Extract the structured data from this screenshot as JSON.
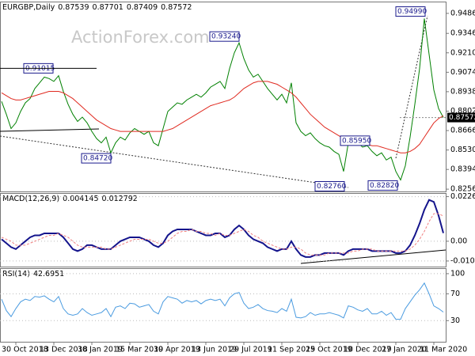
{
  "chart_data": [
    {
      "type": "line",
      "title": "EURGBP,Daily",
      "ohlc": [
        0.87539,
        0.87701,
        0.87409,
        0.87572
      ],
      "watermark": "ActionForex.com",
      "ylim": [
        0.824,
        0.9563
      ],
      "yticks": [
        {
          "value": 0.9486,
          "label": "0.94860"
        },
        {
          "value": 0.9346,
          "label": "0.93460"
        },
        {
          "value": 0.921,
          "label": "0.92100"
        },
        {
          "value": 0.9074,
          "label": "0.90740"
        },
        {
          "value": 0.8938,
          "label": "0.89380"
        },
        {
          "value": 0.8802,
          "label": "0.88020"
        },
        {
          "value": 0.8666,
          "label": "0.86660"
        },
        {
          "value": 0.853,
          "label": "0.85300"
        },
        {
          "value": 0.8394,
          "label": "0.83940"
        },
        {
          "value": 0.8256,
          "label": "0.82560"
        }
      ],
      "annotations": [
        {
          "value": 0.91015,
          "label": "0.91015"
        },
        {
          "value": 0.8472,
          "label": "0.84720"
        },
        {
          "value": 0.9324,
          "label": "0.93240"
        },
        {
          "value": 0.8276,
          "label": "0.82760"
        },
        {
          "value": 0.8595,
          "label": "0.85950"
        },
        {
          "value": 0.8282,
          "label": "0.82820"
        },
        {
          "value": 0.9499,
          "label": "0.94990"
        }
      ],
      "series": [
        {
          "color": "#008000",
          "values": [
            0.887,
            0.878,
            0.868,
            0.872,
            0.88,
            0.886,
            0.889,
            0.896,
            0.9,
            0.904,
            0.903,
            0.901,
            0.905,
            0.894,
            0.885,
            0.878,
            0.873,
            0.876,
            0.872,
            0.866,
            0.861,
            0.858,
            0.862,
            0.851,
            0.858,
            0.862,
            0.86,
            0.865,
            0.868,
            0.866,
            0.864,
            0.866,
            0.858,
            0.856,
            0.868,
            0.88,
            0.883,
            0.886,
            0.885,
            0.888,
            0.89,
            0.892,
            0.89,
            0.893,
            0.897,
            0.899,
            0.901,
            0.896,
            0.91,
            0.921,
            0.928,
            0.917,
            0.909,
            0.904,
            0.906,
            0.901,
            0.896,
            0.892,
            0.888,
            0.892,
            0.886,
            0.9,
            0.872,
            0.866,
            0.863,
            0.865,
            0.861,
            0.858,
            0.856,
            0.855,
            0.852,
            0.85,
            0.838,
            0.858,
            0.86,
            0.858,
            0.855,
            0.856,
            0.852,
            0.849,
            0.851,
            0.846,
            0.848,
            0.838,
            0.832,
            0.842,
            0.862,
            0.885,
            0.91,
            0.945,
            0.92,
            0.895,
            0.882,
            0.8757
          ]
        },
        {
          "color": "#e02a20",
          "values": [
            0.893,
            0.891,
            0.889,
            0.888,
            0.888,
            0.889,
            0.89,
            0.891,
            0.892,
            0.893,
            0.894,
            0.894,
            0.894,
            0.893,
            0.891,
            0.889,
            0.886,
            0.883,
            0.88,
            0.877,
            0.874,
            0.872,
            0.87,
            0.868,
            0.867,
            0.866,
            0.866,
            0.866,
            0.866,
            0.866,
            0.866,
            0.866,
            0.866,
            0.866,
            0.866,
            0.867,
            0.868,
            0.87,
            0.872,
            0.874,
            0.876,
            0.878,
            0.88,
            0.882,
            0.884,
            0.885,
            0.886,
            0.887,
            0.888,
            0.89,
            0.893,
            0.896,
            0.898,
            0.9,
            0.901,
            0.901,
            0.901,
            0.9,
            0.899,
            0.897,
            0.895,
            0.893,
            0.89,
            0.886,
            0.882,
            0.878,
            0.875,
            0.872,
            0.869,
            0.867,
            0.865,
            0.863,
            0.861,
            0.86,
            0.859,
            0.858,
            0.857,
            0.857,
            0.856,
            0.856,
            0.855,
            0.854,
            0.853,
            0.852,
            0.851,
            0.851,
            0.852,
            0.854,
            0.857,
            0.862,
            0.867,
            0.872,
            0.875,
            0.877
          ]
        }
      ]
    },
    {
      "type": "line",
      "title": "MACD(12,26,9)",
      "ylim": [
        -0.0129,
        0.0241
      ],
      "yticks": [
        0.022662,
        {
          "value": 0,
          "label": "0.00"
        },
        -0.010052
      ],
      "series": [
        {
          "color": "#14148c",
          "values": [
            0.001,
            -0.001,
            -0.003,
            -0.004,
            -0.002,
            0.0,
            0.002,
            0.003,
            0.003,
            0.004,
            0.004,
            0.004,
            0.004,
            0.002,
            -0.001,
            -0.004,
            -0.005,
            -0.004,
            -0.002,
            -0.002,
            -0.003,
            -0.004,
            -0.004,
            -0.004,
            -0.002,
            0.0,
            0.001,
            0.002,
            0.002,
            0.002,
            0.001,
            0.0,
            -0.002,
            -0.003,
            -0.001,
            0.003,
            0.005,
            0.006,
            0.006,
            0.006,
            0.006,
            0.005,
            0.004,
            0.003,
            0.003,
            0.004,
            0.004,
            0.002,
            0.003,
            0.006,
            0.008,
            0.006,
            0.003,
            0.001,
            0.0,
            -0.001,
            -0.003,
            -0.004,
            -0.005,
            -0.004,
            -0.004,
            0.0,
            -0.004,
            -0.007,
            -0.008,
            -0.008,
            -0.007,
            -0.007,
            -0.006,
            -0.006,
            -0.006,
            -0.006,
            -0.007,
            -0.005,
            -0.004,
            -0.004,
            -0.004,
            -0.004,
            -0.005,
            -0.005,
            -0.005,
            -0.005,
            -0.005,
            -0.006,
            -0.006,
            -0.005,
            -0.002,
            0.003,
            0.009,
            0.016,
            0.021,
            0.02,
            0.013,
            0.004145
          ]
        },
        {
          "color": "#f08080",
          "values": [
            0.002,
            0.001,
            0.0,
            -0.002,
            -0.002,
            -0.002,
            -0.001,
            0.0,
            0.001,
            0.002,
            0.003,
            0.003,
            0.004,
            0.003,
            0.002,
            0.0,
            -0.002,
            -0.003,
            -0.003,
            -0.003,
            -0.003,
            -0.003,
            -0.004,
            -0.004,
            -0.003,
            -0.002,
            -0.001,
            0.0,
            0.001,
            0.001,
            0.001,
            0.001,
            0.0,
            -0.001,
            -0.001,
            0.0,
            0.002,
            0.004,
            0.005,
            0.005,
            0.006,
            0.005,
            0.005,
            0.004,
            0.004,
            0.003,
            0.004,
            0.003,
            0.003,
            0.004,
            0.005,
            0.006,
            0.005,
            0.003,
            0.002,
            0.0,
            -0.001,
            -0.002,
            -0.003,
            -0.004,
            -0.004,
            -0.003,
            -0.003,
            -0.004,
            -0.006,
            -0.007,
            -0.007,
            -0.007,
            -0.007,
            -0.006,
            -0.006,
            -0.006,
            -0.006,
            -0.006,
            -0.005,
            -0.005,
            -0.004,
            -0.004,
            -0.004,
            -0.005,
            -0.005,
            -0.005,
            -0.005,
            -0.005,
            -0.005,
            -0.005,
            -0.004,
            -0.002,
            0.001,
            0.005,
            0.01,
            0.014,
            0.014,
            0.012792
          ]
        }
      ]
    },
    {
      "type": "line",
      "title": "RSI(14)",
      "ylim": [
        -1.5,
        107
      ],
      "yticks": [
        100,
        70,
        30
      ],
      "categories": [
        null,
        null,
        null,
        "30 Oct 2018",
        null,
        null,
        null,
        null,
        null,
        null,
        null,
        "13 Dec 2018",
        null,
        null,
        null,
        null,
        null,
        null,
        null,
        "30 Jan 2019",
        null,
        null,
        null,
        null,
        null,
        null,
        null,
        "15 Mar 2019",
        null,
        null,
        null,
        null,
        null,
        null,
        null,
        "30 Apr 2019",
        null,
        null,
        null,
        null,
        null,
        null,
        null,
        "13 Jun 2019",
        null,
        null,
        null,
        null,
        null,
        null,
        null,
        "29 Jul 2019",
        null,
        null,
        null,
        null,
        null,
        null,
        null,
        "11 Sep 2019",
        null,
        null,
        null,
        null,
        null,
        null,
        null,
        "25 Oct 2019",
        null,
        null,
        null,
        null,
        null,
        null,
        null,
        "10 Dec 2019",
        null,
        null,
        null,
        null,
        null,
        null,
        null,
        "27 Jan 2020",
        null,
        null,
        null,
        null,
        null,
        null,
        null,
        "11 Mar 2020",
        null,
        null
      ],
      "series": [
        {
          "color": "#4a9be0",
          "values": [
            62,
            45,
            36,
            48,
            58,
            62,
            60,
            66,
            65,
            67,
            62,
            58,
            66,
            48,
            40,
            38,
            40,
            48,
            42,
            38,
            40,
            42,
            48,
            36,
            50,
            52,
            48,
            56,
            55,
            50,
            52,
            54,
            44,
            40,
            58,
            66,
            64,
            62,
            56,
            60,
            58,
            60,
            55,
            60,
            62,
            60,
            62,
            52,
            64,
            70,
            72,
            56,
            48,
            50,
            54,
            48,
            45,
            44,
            42,
            48,
            44,
            62,
            35,
            34,
            36,
            42,
            38,
            40,
            40,
            42,
            40,
            38,
            34,
            52,
            50,
            46,
            44,
            48,
            40,
            40,
            44,
            38,
            42,
            32,
            32,
            48,
            58,
            68,
            76,
            86,
            70,
            52,
            48,
            42.6951
          ]
        }
      ]
    }
  ]
}
